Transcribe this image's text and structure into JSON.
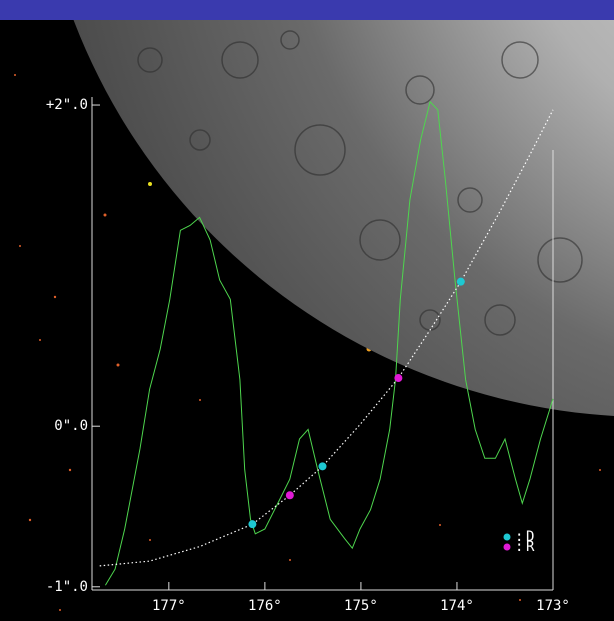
{
  "chart_data": {
    "type": "line",
    "xlim": [
      177.8,
      173.0
    ],
    "ylim": [
      -1.02,
      2.05
    ],
    "xticks": [
      {
        "value": 177,
        "label": "177°"
      },
      {
        "value": 176,
        "label": "176°"
      },
      {
        "value": 175,
        "label": "175°"
      },
      {
        "value": 174,
        "label": "174°"
      },
      {
        "value": 173,
        "label": "173°"
      }
    ],
    "yticks": [
      {
        "value": 2,
        "label": "+2\".0"
      },
      {
        "value": 0,
        "label": "0\".0"
      },
      {
        "value": -1,
        "label": "-1\".0"
      }
    ],
    "legend_separator": ":",
    "series": [
      {
        "style": "solid",
        "color": "#4ed64e",
        "x": [
          177.66,
          177.56,
          177.46,
          177.3,
          177.2,
          177.09,
          176.99,
          176.88,
          176.78,
          176.68,
          176.57,
          176.47,
          176.36,
          176.26,
          176.21,
          176.15,
          176.1,
          176.0,
          175.84,
          175.74,
          175.64,
          175.55,
          175.45,
          175.32,
          175.17,
          175.09,
          175.01,
          174.9,
          174.8,
          174.7,
          174.64,
          174.59,
          174.49,
          174.38,
          174.28,
          174.2,
          174.12,
          174.02,
          173.91,
          173.81,
          173.71,
          173.6,
          173.5,
          173.39,
          173.32,
          173.24,
          173.13,
          173.0
        ],
        "values": [
          -0.99,
          -0.89,
          -0.64,
          -0.14,
          0.23,
          0.48,
          0.79,
          1.22,
          1.25,
          1.3,
          1.16,
          0.91,
          0.79,
          0.29,
          -0.27,
          -0.58,
          -0.67,
          -0.64,
          -0.45,
          -0.33,
          -0.08,
          -0.02,
          -0.27,
          -0.58,
          -0.7,
          -0.76,
          -0.64,
          -0.52,
          -0.33,
          -0.02,
          0.29,
          0.79,
          1.41,
          1.78,
          2.02,
          1.97,
          1.53,
          0.91,
          0.29,
          -0.02,
          -0.2,
          -0.2,
          -0.08,
          -0.33,
          -0.48,
          -0.33,
          -0.08,
          0.17
        ]
      },
      {
        "style": "dotted",
        "color": "#ffffff",
        "x": [
          177.72,
          177.2,
          176.68,
          176.13,
          175.74,
          175.4,
          175.01,
          174.61,
          174.28,
          173.96,
          173.55,
          173.24,
          173.0
        ],
        "values": [
          -0.87,
          -0.84,
          -0.75,
          -0.61,
          -0.43,
          -0.25,
          0.01,
          0.3,
          0.6,
          0.9,
          1.34,
          1.69,
          1.97
        ]
      },
      {
        "style": "points",
        "name": "D",
        "color": "#1ec8d2",
        "x": [
          176.13,
          175.4,
          173.96
        ],
        "values": [
          -0.61,
          -0.25,
          0.9
        ]
      },
      {
        "style": "points",
        "name": "R",
        "color": "#e01ad6",
        "x": [
          175.74,
          174.61
        ],
        "values": [
          -0.43,
          0.3
        ]
      }
    ]
  }
}
